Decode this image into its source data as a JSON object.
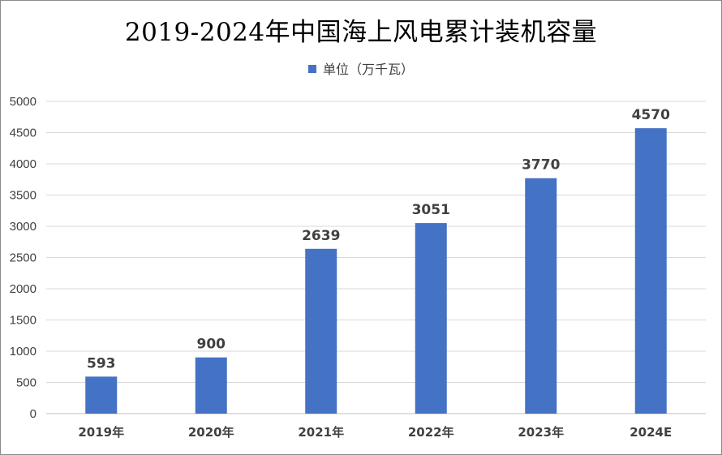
{
  "chart_data": {
    "type": "bar",
    "title": "2019-2024年中国海上风电累计装机容量",
    "legend_label": "单位（万千瓦）",
    "legend_position": "top",
    "categories": [
      "2019年",
      "2020年",
      "2021年",
      "2022年",
      "2023年",
      "2024E"
    ],
    "series": [
      {
        "name": "单位（万千瓦）",
        "values": [
          593,
          900,
          2639,
          3051,
          3770,
          4570
        ]
      }
    ],
    "ylim": [
      0,
      5000
    ],
    "yticks": [
      "0",
      "500",
      "1000",
      "1500",
      "2000",
      "2500",
      "3000",
      "3500",
      "4000",
      "4500",
      "5000"
    ],
    "grid": true,
    "bar_color": "#4472c4"
  }
}
